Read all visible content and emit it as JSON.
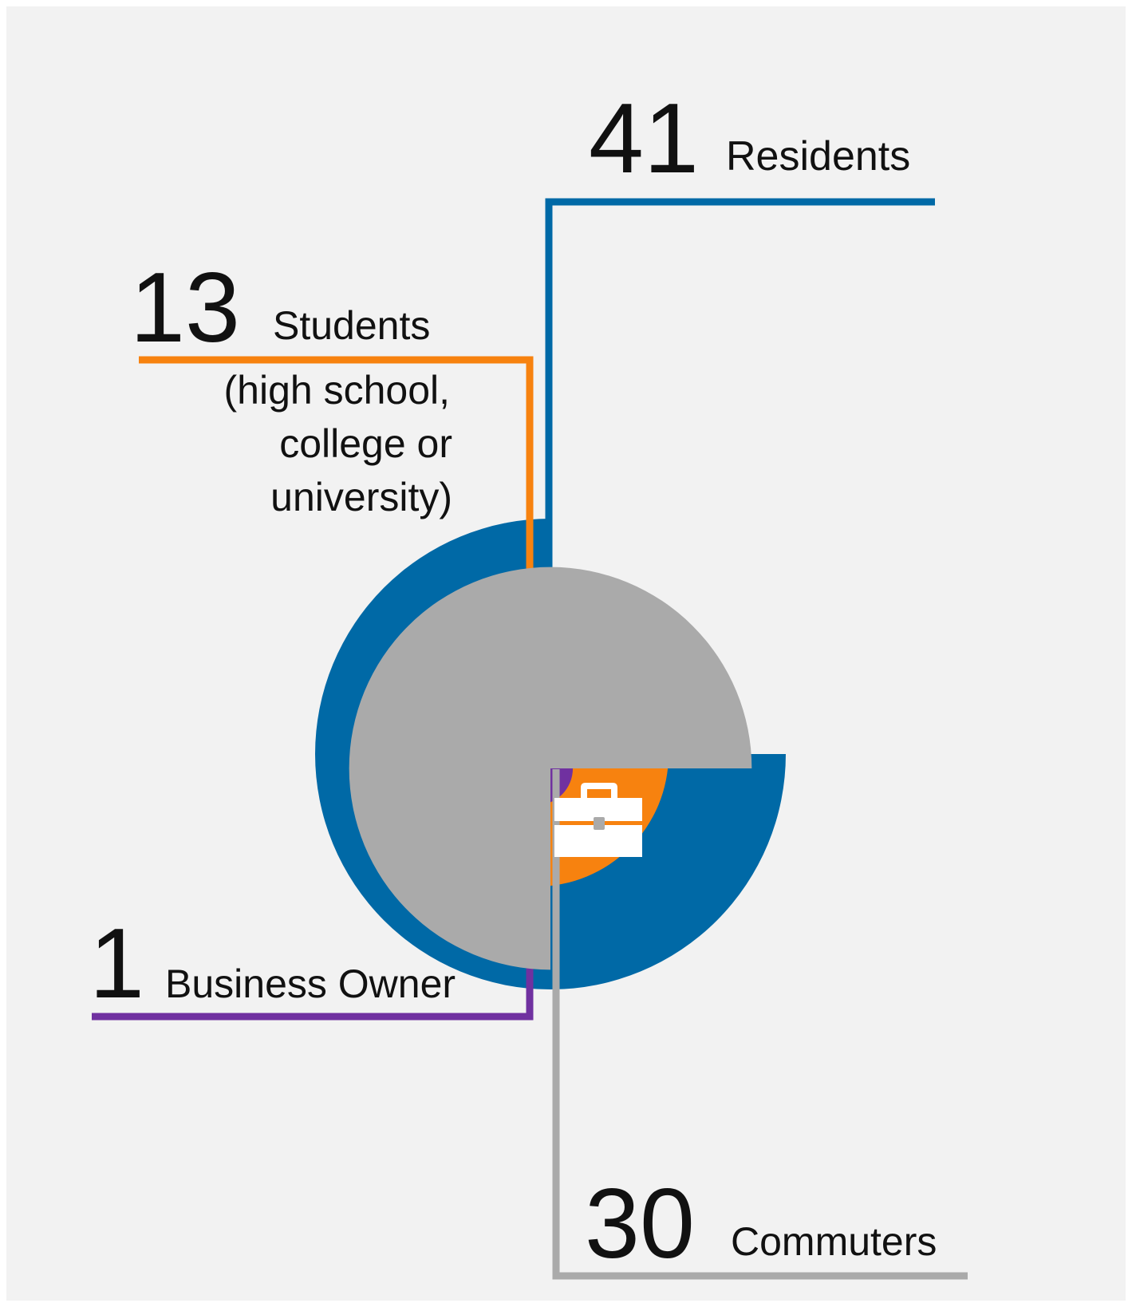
{
  "colors": {
    "background": "#f2f2f2",
    "residents": "#0069a6",
    "students": "#f7820f",
    "business": "#7031a0",
    "commuters": "#aaaaaa"
  },
  "chart_data": {
    "type": "pie",
    "series": [
      {
        "name": "Residents",
        "value": 41,
        "label": "Residents",
        "icon": "house-icon",
        "color": "#0069a6",
        "quadrant": "top-right"
      },
      {
        "name": "Students",
        "value": 13,
        "label": "Students",
        "sublabel": [
          "(high school,",
          "college or",
          "university)"
        ],
        "icon": "graduation-cap-icon",
        "color": "#f7820f",
        "quadrant": "top-left"
      },
      {
        "name": "Business Owner",
        "value": 1,
        "label": "Business Owner",
        "icon": "storefront-icon",
        "color": "#7031a0",
        "quadrant": "bottom-left"
      },
      {
        "name": "Commuters",
        "value": 30,
        "label": "Commuters",
        "icon": "briefcase-icon",
        "color": "#aaaaaa",
        "quadrant": "bottom-right"
      }
    ]
  }
}
